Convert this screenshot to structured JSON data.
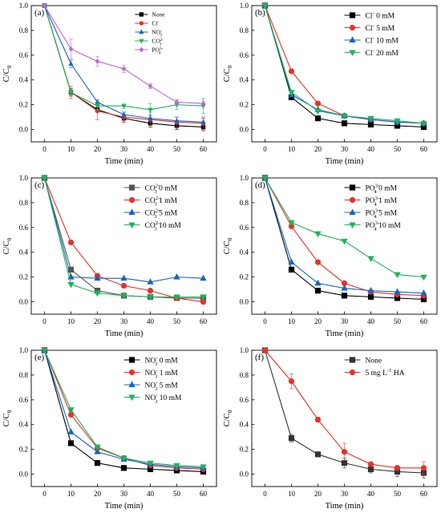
{
  "chart_data": [
    {
      "type": "line",
      "panel_label": "(a)",
      "xlabel": "Time (min)",
      "ylabel": "C/C",
      "ylabel_sub": "0",
      "xlim": [
        -5,
        65
      ],
      "ylim": [
        -0.1,
        1.0
      ],
      "xticks": [
        0,
        10,
        20,
        30,
        40,
        50,
        60
      ],
      "yticks": [
        0.0,
        0.2,
        0.4,
        0.6,
        0.8,
        1.0
      ],
      "legend_position": "top-right",
      "legend_style": "small",
      "series": [
        {
          "name": "None",
          "sup": "",
          "color": "#000000",
          "marker": "square",
          "x": [
            0,
            10,
            20,
            30,
            40,
            50,
            60
          ],
          "y": [
            1.0,
            0.3,
            0.16,
            0.09,
            0.05,
            0.03,
            0.02
          ],
          "err": [
            0,
            0.03,
            0.02,
            0.03,
            0.03,
            0.03,
            0.03
          ]
        },
        {
          "name": "Cl",
          "sup": "-",
          "color": "#e8302a",
          "marker": "circle",
          "x": [
            0,
            10,
            20,
            30,
            40,
            50,
            60
          ],
          "y": [
            1.0,
            0.3,
            0.15,
            0.1,
            0.08,
            0.06,
            0.05
          ],
          "err": [
            0,
            0.05,
            0.07,
            0.04,
            0.06,
            0.04,
            0.05
          ]
        },
        {
          "name": "NO",
          "sub": "3",
          "sup": "-",
          "color": "#1565c0",
          "marker": "triangle-up",
          "x": [
            0,
            10,
            20,
            30,
            40,
            50,
            60
          ],
          "y": [
            1.0,
            0.53,
            0.22,
            0.12,
            0.09,
            0.07,
            0.06
          ],
          "err": [
            0,
            0.03,
            0.02,
            0.02,
            0.03,
            0.03,
            0.03
          ]
        },
        {
          "name": "CO",
          "sub": "3",
          "sup": "2-",
          "color": "#1db35a",
          "marker": "triangle-down",
          "x": [
            0,
            10,
            20,
            30,
            40,
            50,
            60
          ],
          "y": [
            1.0,
            0.3,
            0.19,
            0.19,
            0.16,
            0.2,
            0.19
          ],
          "err": [
            0,
            0.02,
            0.03,
            0.02,
            0.05,
            0.04,
            0.06
          ]
        },
        {
          "name": "PO",
          "sub": "4",
          "sup": "3-",
          "color": "#c065d8",
          "marker": "diamond",
          "x": [
            0,
            10,
            20,
            30,
            40,
            50,
            60
          ],
          "y": [
            1.0,
            0.65,
            0.55,
            0.49,
            0.35,
            0.22,
            0.21
          ],
          "err": [
            0,
            0.08,
            0.04,
            0.03,
            0.02,
            0.02,
            0.02
          ]
        }
      ]
    },
    {
      "type": "line",
      "panel_label": "(b)",
      "xlabel": "Time (min)",
      "ylabel": "C/C",
      "ylabel_sub": "0",
      "xlim": [
        -5,
        65
      ],
      "ylim": [
        -0.1,
        1.0
      ],
      "xticks": [
        0,
        10,
        20,
        30,
        40,
        50,
        60
      ],
      "yticks": [
        0.0,
        0.2,
        0.4,
        0.6,
        0.8,
        1.0
      ],
      "legend_position": "top-right",
      "series": [
        {
          "name": "Cl",
          "sup": "-",
          "suffix": " 0 mM",
          "color": "#000000",
          "marker": "square",
          "x": [
            0,
            10,
            20,
            30,
            40,
            50,
            60
          ],
          "y": [
            1.0,
            0.26,
            0.09,
            0.05,
            0.04,
            0.03,
            0.02
          ]
        },
        {
          "name": "Cl",
          "sup": "-",
          "suffix": " 5 mM",
          "color": "#e8302a",
          "marker": "circle",
          "x": [
            0,
            10,
            20,
            30,
            40,
            50,
            60
          ],
          "y": [
            1.0,
            0.47,
            0.21,
            0.11,
            0.08,
            0.06,
            0.05
          ]
        },
        {
          "name": "Cl",
          "sup": "-",
          "suffix": " 10 mM",
          "color": "#1565c0",
          "marker": "triangle-up",
          "x": [
            0,
            10,
            20,
            30,
            40,
            50,
            60
          ],
          "y": [
            1.0,
            0.28,
            0.16,
            0.11,
            0.08,
            0.06,
            0.05
          ]
        },
        {
          "name": "Cl",
          "sup": "-",
          "suffix": " 20 mM",
          "color": "#1db35a",
          "marker": "triangle-down",
          "x": [
            0,
            10,
            20,
            30,
            40,
            50,
            60
          ],
          "y": [
            1.0,
            0.3,
            0.15,
            0.11,
            0.09,
            0.07,
            0.05
          ]
        }
      ]
    },
    {
      "type": "line",
      "panel_label": "(c)",
      "xlabel": "Time (min)",
      "ylabel": "C/C",
      "ylabel_sub": "0",
      "xlim": [
        -5,
        65
      ],
      "ylim": [
        -0.1,
        1.0
      ],
      "xticks": [
        0,
        10,
        20,
        30,
        40,
        50,
        60
      ],
      "yticks": [
        0.0,
        0.2,
        0.4,
        0.6,
        0.8,
        1.0
      ],
      "legend_position": "top-right",
      "series": [
        {
          "name": "CO",
          "sub": "3",
          "sup": "2-",
          "suffix": " 0 mM",
          "color": "#555555",
          "marker": "square",
          "x": [
            0,
            10,
            20,
            30,
            40,
            50,
            60
          ],
          "y": [
            1.0,
            0.26,
            0.09,
            0.05,
            0.04,
            0.03,
            0.03
          ]
        },
        {
          "name": "CO",
          "sub": "3",
          "sup": "2-",
          "suffix": " 1 mM",
          "color": "#e8302a",
          "marker": "circle",
          "x": [
            0,
            10,
            20,
            30,
            40,
            50,
            60
          ],
          "y": [
            1.0,
            0.48,
            0.21,
            0.13,
            0.09,
            0.03,
            0.0
          ]
        },
        {
          "name": "CO",
          "sub": "3",
          "sup": "2-",
          "suffix": " 5 mM",
          "color": "#1565c0",
          "marker": "triangle-up",
          "x": [
            0,
            10,
            20,
            30,
            40,
            50,
            60
          ],
          "y": [
            1.0,
            0.2,
            0.19,
            0.19,
            0.16,
            0.2,
            0.19
          ]
        },
        {
          "name": "CO",
          "sub": "3",
          "sup": "2-",
          "suffix": " 10 mM",
          "color": "#1db35a",
          "marker": "triangle-down",
          "x": [
            0,
            10,
            20,
            30,
            40,
            50,
            60
          ],
          "y": [
            1.0,
            0.14,
            0.07,
            0.05,
            0.04,
            0.04,
            0.04
          ]
        }
      ]
    },
    {
      "type": "line",
      "panel_label": "(d)",
      "xlabel": "Time (min)",
      "ylabel": "C/C",
      "ylabel_sub": "0",
      "xlim": [
        -5,
        65
      ],
      "ylim": [
        -0.1,
        1.0
      ],
      "xticks": [
        0,
        10,
        20,
        30,
        40,
        50,
        60
      ],
      "yticks": [
        0.0,
        0.2,
        0.4,
        0.6,
        0.8,
        1.0
      ],
      "legend_position": "top-right",
      "series": [
        {
          "name": "PO",
          "sub": "4",
          "sup": "3-",
          "suffix": " 0 mM",
          "color": "#000000",
          "marker": "square",
          "x": [
            0,
            10,
            20,
            30,
            40,
            50,
            60
          ],
          "y": [
            1.0,
            0.26,
            0.09,
            0.05,
            0.04,
            0.03,
            0.02
          ]
        },
        {
          "name": "PO",
          "sub": "4",
          "sup": "3-",
          "suffix": " 1 mM",
          "color": "#e8302a",
          "marker": "circle",
          "x": [
            0,
            10,
            20,
            30,
            40,
            50,
            60
          ],
          "y": [
            1.0,
            0.61,
            0.32,
            0.15,
            0.08,
            0.06,
            0.05
          ]
        },
        {
          "name": "PO",
          "sub": "4",
          "sup": "3-",
          "suffix": " 5 mM",
          "color": "#1565c0",
          "marker": "triangle-up",
          "x": [
            0,
            10,
            20,
            30,
            40,
            50,
            60
          ],
          "y": [
            1.0,
            0.32,
            0.15,
            0.11,
            0.09,
            0.08,
            0.07
          ]
        },
        {
          "name": "PO",
          "sub": "4",
          "sup": "3-",
          "suffix": " 10 mM",
          "color": "#1db35a",
          "marker": "triangle-down",
          "x": [
            0,
            10,
            20,
            30,
            40,
            50,
            60
          ],
          "y": [
            1.0,
            0.64,
            0.55,
            0.49,
            0.35,
            0.22,
            0.2
          ]
        }
      ]
    },
    {
      "type": "line",
      "panel_label": "(e)",
      "xlabel": "Time (min)",
      "ylabel": "C/C",
      "ylabel_sub": "0",
      "xlim": [
        -5,
        65
      ],
      "ylim": [
        -0.1,
        1.0
      ],
      "xticks": [
        0,
        10,
        20,
        30,
        40,
        50,
        60
      ],
      "yticks": [
        0.0,
        0.2,
        0.4,
        0.6,
        0.8,
        1.0
      ],
      "legend_position": "top-right",
      "series": [
        {
          "name": "NO",
          "sub": "3",
          "sup": "-",
          "suffix": " 0 mM",
          "color": "#000000",
          "marker": "square",
          "x": [
            0,
            10,
            20,
            30,
            40,
            50,
            60
          ],
          "y": [
            1.0,
            0.25,
            0.09,
            0.05,
            0.04,
            0.03,
            0.02
          ]
        },
        {
          "name": "NO",
          "sub": "3",
          "sup": "-",
          "suffix": " 1 mM",
          "color": "#e8302a",
          "marker": "circle",
          "x": [
            0,
            10,
            20,
            30,
            40,
            50,
            60
          ],
          "y": [
            1.0,
            0.48,
            0.21,
            0.13,
            0.07,
            0.05,
            0.04
          ]
        },
        {
          "name": "NO",
          "sub": "3",
          "sup": "-",
          "suffix": " 5 mM",
          "color": "#1565c0",
          "marker": "triangle-up",
          "x": [
            0,
            10,
            20,
            30,
            40,
            50,
            60
          ],
          "y": [
            1.0,
            0.34,
            0.18,
            0.12,
            0.08,
            0.06,
            0.05
          ]
        },
        {
          "name": "NO",
          "sub": "3",
          "sup": "-",
          "suffix": " 10 mM",
          "color": "#1db35a",
          "marker": "triangle-down",
          "x": [
            0,
            10,
            20,
            30,
            40,
            50,
            60
          ],
          "y": [
            1.0,
            0.52,
            0.22,
            0.13,
            0.09,
            0.07,
            0.06
          ]
        }
      ]
    },
    {
      "type": "line",
      "panel_label": "(f)",
      "xlabel": "Time (min)",
      "ylabel": "C/C",
      "ylabel_sub": "0",
      "xlim": [
        -5,
        65
      ],
      "ylim": [
        -0.1,
        1.0
      ],
      "xticks": [
        0,
        10,
        20,
        30,
        40,
        50,
        60
      ],
      "yticks": [
        0.0,
        0.2,
        0.4,
        0.6,
        0.8,
        1.0
      ],
      "legend_position": "top-right",
      "series": [
        {
          "name": "None",
          "color": "#333333",
          "marker": "square",
          "x": [
            0,
            10,
            20,
            30,
            40,
            50,
            60
          ],
          "y": [
            1.0,
            0.29,
            0.16,
            0.09,
            0.04,
            0.02,
            0.01
          ],
          "err": [
            0,
            0.03,
            0.01,
            0.04,
            0.03,
            0.04,
            0.04
          ]
        },
        {
          "name": "5 mg L",
          "sup": "-1",
          "suffix": " HA",
          "color": "#e8302a",
          "marker": "circle",
          "x": [
            0,
            10,
            20,
            30,
            40,
            50,
            60
          ],
          "y": [
            1.0,
            0.75,
            0.44,
            0.18,
            0.08,
            0.05,
            0.05
          ],
          "err": [
            0,
            0.06,
            0.02,
            0.07,
            0.02,
            0.02,
            0.05
          ]
        }
      ]
    }
  ]
}
